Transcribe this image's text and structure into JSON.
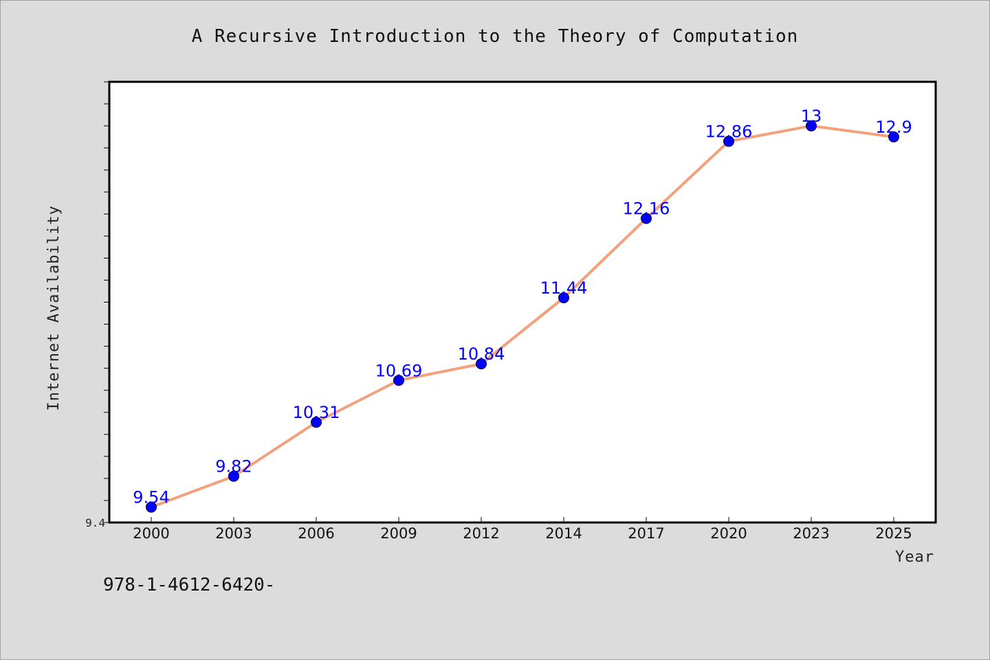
{
  "chart_data": {
    "type": "line",
    "title": "A Recursive Introduction to the Theory of Computation",
    "xlabel": "Year",
    "ylabel": "Internet Availability",
    "categories": [
      "2000",
      "2003",
      "2006",
      "2009",
      "2012",
      "2014",
      "2017",
      "2020",
      "2023",
      "2025"
    ],
    "series": [
      {
        "values": [
          9.54,
          9.82,
          10.31,
          10.69,
          10.84,
          11.44,
          12.16,
          12.86,
          13,
          12.9
        ],
        "labels": [
          "9.54",
          "9.82",
          "10.31",
          "10.69",
          "10.84",
          "11.44",
          "12.16",
          "12.86",
          "13",
          "12.9"
        ],
        "line_color": "#f4a07a",
        "marker_color": "#0000ff"
      }
    ],
    "ylim": [
      9.4,
      13.4
    ],
    "y_tick_labels": [
      "9.4"
    ],
    "grid": false,
    "legend": "none"
  },
  "footer": {
    "code": "978-1-4612-6420-"
  },
  "colors": {
    "background": "#dcdcdc",
    "plot_background": "#ffffff",
    "line": "#f4a07a",
    "marker": "#0000ff",
    "data_label": "#0000ff"
  }
}
